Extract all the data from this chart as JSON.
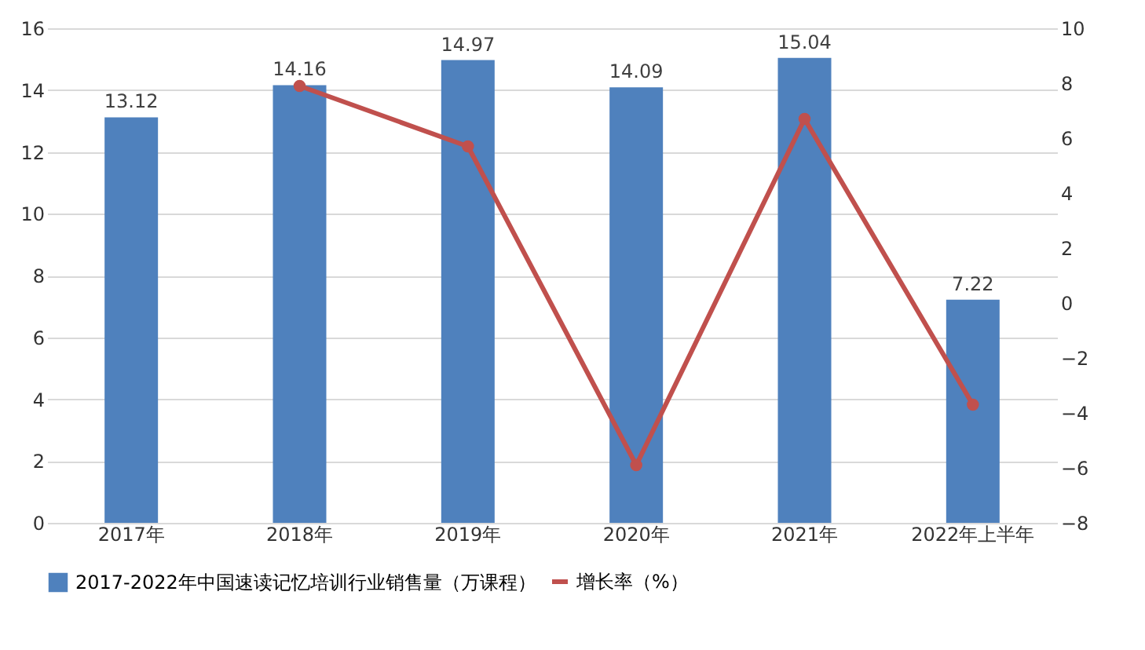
{
  "chart_data": {
    "type": "bar",
    "categories": [
      "2017年",
      "2018年",
      "2019年",
      "2020年",
      "2021年",
      "2022年上半年"
    ],
    "series": [
      {
        "name": "2017-2022年中国速读记忆培训行业销售量（万课程）",
        "color": "#4f81bd",
        "values": [
          13.12,
          14.16,
          14.97,
          14.09,
          15.04,
          7.22
        ],
        "value_labels": [
          "13.12",
          "14.16",
          "14.97",
          "14.09",
          "15.04",
          "7.22"
        ]
      },
      {
        "name": "增长率（%）",
        "type": "line",
        "axis": "y2",
        "color": "#c0504d",
        "values": [
          null,
          7.9,
          5.7,
          -5.9,
          6.7,
          -3.7
        ]
      }
    ],
    "ylim": [
      0,
      16
    ],
    "yticks": [
      0,
      2,
      4,
      6,
      8,
      10,
      12,
      14,
      16
    ],
    "y2lim": [
      -8,
      10
    ],
    "y2ticks": [
      -8,
      -6,
      -4,
      -2,
      0,
      2,
      4,
      6,
      8,
      10
    ],
    "grid": "y",
    "legend": "bottom",
    "marker": "circle",
    "line_style": "solid"
  }
}
